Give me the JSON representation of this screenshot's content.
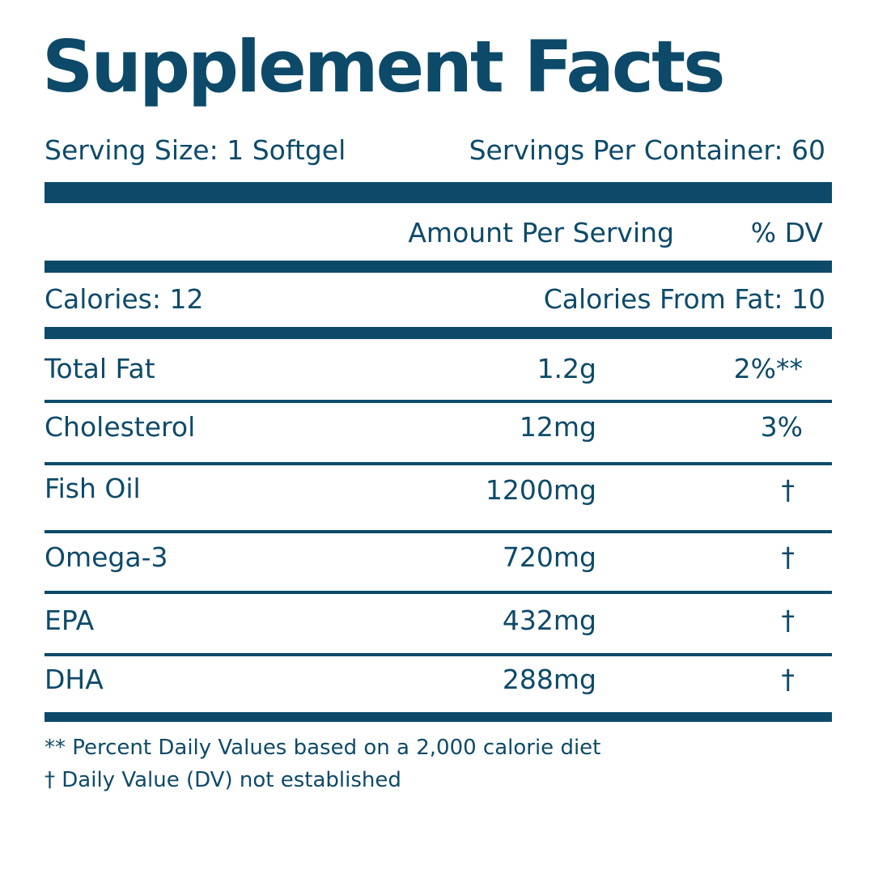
{
  "title": "Supplement Facts",
  "serving": {
    "size": "Serving Size:  1 Softgel",
    "per_container": "Servings Per Container: 60"
  },
  "headers": {
    "amount": "Amount Per Serving",
    "dv": "% DV"
  },
  "calories": {
    "total": "Calories: 12",
    "from_fat": "Calories From Fat: 10"
  },
  "rows": [
    {
      "name": "Total Fat",
      "amount": "1.2g",
      "dv": "2%**"
    },
    {
      "name": "Cholesterol",
      "amount": "12mg",
      "dv": "3%"
    },
    {
      "name": "Fish Oil",
      "amount": "1200mg",
      "dv": "†"
    },
    {
      "name": "Omega-3",
      "amount": "720mg",
      "dv": "†"
    },
    {
      "name": "EPA",
      "amount": "432mg",
      "dv": "†"
    },
    {
      "name": "DHA",
      "amount": "288mg",
      "dv": "†"
    }
  ],
  "footnotes": [
    "** Percent Daily Values based on a 2,000 calorie diet",
    "† Daily Value (DV) not established"
  ],
  "colors": {
    "primary": "#0d4a69",
    "background": "#ffffff"
  }
}
